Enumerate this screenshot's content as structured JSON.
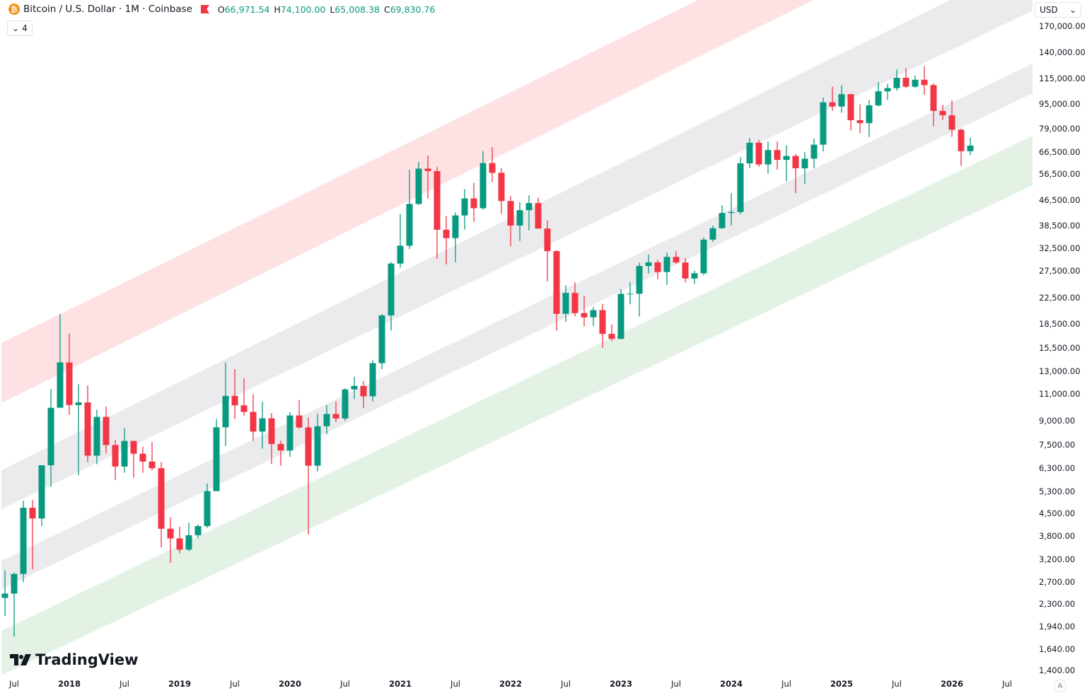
{
  "header": {
    "symbol_icon": "bitcoin-icon",
    "title": "Bitcoin / U.S. Dollar · 1M · Coinbase",
    "ohlc": {
      "o_label": "O",
      "o": "66,971.54",
      "h_label": "H",
      "h": "74,100.00",
      "l_label": "L",
      "l": "65,008.38",
      "c_label": "C",
      "c": "69,830.76"
    },
    "indicators_count": "4",
    "currency": "USD"
  },
  "watermark": "TradingView",
  "auto_scale_label": "A",
  "colors": {
    "up": "#089981",
    "down": "#f23645",
    "band_red": "#fde1e3",
    "band_grey": "#ebebee",
    "band_green": "#e4f2e6"
  },
  "chart_data": {
    "type": "candlestick",
    "title": "Bitcoin / U.S. Dollar · 1M · Coinbase",
    "scale": "log",
    "ylim": [
      1400,
      170000
    ],
    "y_ticks": [
      "170,000.00",
      "140,000.00",
      "115,000.00",
      "95,000.00",
      "79,000.00",
      "66,500.00",
      "56,500.00",
      "46,500.00",
      "38,500.00",
      "32,500.00",
      "27,500.00",
      "22,500.00",
      "18,500.00",
      "15,500.00",
      "13,000.00",
      "11,000.00",
      "9,000.00",
      "7,500.00",
      "6,300.00",
      "5,300.00",
      "4,500.00",
      "3,800.00",
      "3,200.00",
      "2,700.00",
      "2,300.00",
      "1,940.00",
      "1,640.00",
      "1,400.00"
    ],
    "x_ticks": [
      {
        "label": "Jul",
        "date": "2017-07"
      },
      {
        "label": "2018",
        "date": "2018-01"
      },
      {
        "label": "Jul",
        "date": "2018-07"
      },
      {
        "label": "2019",
        "date": "2019-01"
      },
      {
        "label": "Jul",
        "date": "2019-07"
      },
      {
        "label": "2020",
        "date": "2020-01"
      },
      {
        "label": "Jul",
        "date": "2020-07"
      },
      {
        "label": "2021",
        "date": "2021-01"
      },
      {
        "label": "Jul",
        "date": "2021-07"
      },
      {
        "label": "2022",
        "date": "2022-01"
      },
      {
        "label": "Jul",
        "date": "2022-07"
      },
      {
        "label": "2023",
        "date": "2023-01"
      },
      {
        "label": "Jul",
        "date": "2023-07"
      },
      {
        "label": "2024",
        "date": "2024-01"
      },
      {
        "label": "Jul",
        "date": "2024-07"
      },
      {
        "label": "2025",
        "date": "2025-01"
      },
      {
        "label": "Jul",
        "date": "2025-07"
      },
      {
        "label": "2026",
        "date": "2026-01"
      },
      {
        "label": "Jul",
        "date": "2026-07"
      }
    ],
    "start": "2017-06",
    "candles_columns": [
      "open",
      "high",
      "low",
      "close"
    ],
    "candles": [
      [
        2400,
        2950,
        2100,
        2480
      ],
      [
        2480,
        2900,
        1800,
        2870
      ],
      [
        2870,
        4950,
        2700,
        4700
      ],
      [
        4700,
        4980,
        2970,
        4340
      ],
      [
        4340,
        6450,
        4100,
        6450
      ],
      [
        6450,
        11400,
        5500,
        9900
      ],
      [
        9900,
        19890,
        10000,
        13880
      ],
      [
        13880,
        17180,
        9400,
        10100
      ],
      [
        10100,
        11800,
        6000,
        10300
      ],
      [
        10300,
        11700,
        6600,
        6930
      ],
      [
        6930,
        9750,
        6500,
        9250
      ],
      [
        9250,
        9990,
        7050,
        7500
      ],
      [
        7500,
        7780,
        5780,
        6390
      ],
      [
        6390,
        8500,
        6100,
        7730
      ],
      [
        7730,
        7750,
        5880,
        7030
      ],
      [
        7030,
        7400,
        6100,
        6630
      ],
      [
        6630,
        7680,
        6200,
        6310
      ],
      [
        6310,
        6620,
        3500,
        4020
      ],
      [
        4020,
        4380,
        3120,
        3740
      ],
      [
        3740,
        4080,
        3350,
        3440
      ],
      [
        3440,
        4200,
        3400,
        3830
      ],
      [
        3830,
        4150,
        3750,
        4100
      ],
      [
        4100,
        5630,
        4050,
        5320
      ],
      [
        5320,
        9100,
        5320,
        8560
      ],
      [
        8560,
        13880,
        7450,
        10820
      ],
      [
        10820,
        13200,
        9100,
        10080
      ],
      [
        10080,
        12330,
        9330,
        9600
      ],
      [
        9600,
        10950,
        7730,
        8290
      ],
      [
        8290,
        10370,
        7300,
        9150
      ],
      [
        9150,
        9520,
        6520,
        7560
      ],
      [
        7560,
        7750,
        6430,
        7200
      ],
      [
        7200,
        9580,
        6870,
        9350
      ],
      [
        9350,
        10500,
        8450,
        8550
      ],
      [
        8550,
        9190,
        3850,
        6430
      ],
      [
        6430,
        9460,
        6160,
        8630
      ],
      [
        8630,
        10080,
        8120,
        9450
      ],
      [
        9450,
        10380,
        8900,
        9140
      ],
      [
        9140,
        11450,
        8960,
        11350
      ],
      [
        11350,
        12480,
        10550,
        11650
      ],
      [
        11650,
        12080,
        9880,
        10780
      ],
      [
        10780,
        14100,
        10380,
        13800
      ],
      [
        13800,
        19900,
        13200,
        19700
      ],
      [
        19700,
        29300,
        17600,
        28990
      ],
      [
        28990,
        41950,
        28100,
        33110
      ],
      [
        33110,
        58350,
        32300,
        45200
      ],
      [
        45200,
        61800,
        44950,
        58800
      ],
      [
        58800,
        64900,
        47000,
        57750
      ],
      [
        57750,
        59500,
        30000,
        37300
      ],
      [
        37300,
        41300,
        28800,
        35040
      ],
      [
        35040,
        42400,
        29300,
        41500
      ],
      [
        41500,
        50500,
        37330,
        47100
      ],
      [
        47100,
        52900,
        39600,
        43800
      ],
      [
        43800,
        67000,
        43300,
        61300
      ],
      [
        61300,
        69000,
        53250,
        57000
      ],
      [
        57000,
        59100,
        42000,
        46200
      ],
      [
        46200,
        47990,
        32950,
        38480
      ],
      [
        38480,
        45800,
        34300,
        43160
      ],
      [
        43160,
        48190,
        37200,
        45510
      ],
      [
        45510,
        47440,
        37700,
        37630
      ],
      [
        37630,
        39980,
        25400,
        31800
      ],
      [
        31800,
        31980,
        17600,
        19940
      ],
      [
        19940,
        24670,
        18780,
        23300
      ],
      [
        23300,
        25200,
        19550,
        20050
      ],
      [
        20050,
        22800,
        18150,
        19420
      ],
      [
        19420,
        20990,
        18200,
        20490
      ],
      [
        20490,
        21480,
        15480,
        17170
      ],
      [
        17170,
        18400,
        16250,
        16540
      ],
      [
        16540,
        23950,
        16500,
        23130
      ],
      [
        23130,
        25250,
        21400,
        23150
      ],
      [
        23150,
        29200,
        19550,
        28470
      ],
      [
        28470,
        31000,
        26940,
        29250
      ],
      [
        29250,
        29850,
        25800,
        27220
      ],
      [
        27220,
        31450,
        24750,
        30470
      ],
      [
        30470,
        31800,
        28860,
        29230
      ],
      [
        29230,
        30230,
        25200,
        25940
      ],
      [
        25940,
        27490,
        24900,
        26970
      ],
      [
        26970,
        35200,
        26550,
        34650
      ],
      [
        34650,
        38430,
        34100,
        37720
      ],
      [
        37720,
        44750,
        37600,
        42260
      ],
      [
        42260,
        48970,
        38500,
        42580
      ],
      [
        42580,
        64000,
        41880,
        61160
      ],
      [
        61160,
        73800,
        59000,
        71330
      ],
      [
        71330,
        72800,
        59600,
        60670
      ],
      [
        60670,
        71980,
        56550,
        67530
      ],
      [
        67530,
        71950,
        58400,
        62770
      ],
      [
        62770,
        70000,
        53500,
        64620
      ],
      [
        64620,
        65600,
        49000,
        58970
      ],
      [
        58970,
        66500,
        52550,
        63330
      ],
      [
        63330,
        73600,
        58870,
        70290
      ],
      [
        70290,
        99800,
        66800,
        96400
      ],
      [
        96400,
        108300,
        90500,
        93430
      ],
      [
        93430,
        109350,
        89200,
        102400
      ],
      [
        102400,
        102800,
        78200,
        84350
      ],
      [
        84350,
        95000,
        76600,
        82550
      ],
      [
        82550,
        97900,
        74400,
        94200
      ],
      [
        94200,
        111900,
        93300,
        104600
      ],
      [
        104600,
        110600,
        98200,
        107150
      ],
      [
        107150,
        123200,
        105100,
        115750
      ],
      [
        115750,
        124450,
        107300,
        108250
      ],
      [
        108250,
        117900,
        107250,
        114050
      ],
      [
        114050,
        126200,
        102000,
        109600
      ],
      [
        109600,
        111000,
        80600,
        90400
      ],
      [
        90400,
        94600,
        84400,
        87500
      ],
      [
        87500,
        97900,
        74500,
        78600
      ],
      [
        78600,
        79300,
        60000,
        66970
      ],
      [
        66971.54,
        74100,
        65008.38,
        69830.76
      ]
    ],
    "bands": [
      "red",
      "grey",
      "grey",
      "green"
    ],
    "grid": false
  }
}
